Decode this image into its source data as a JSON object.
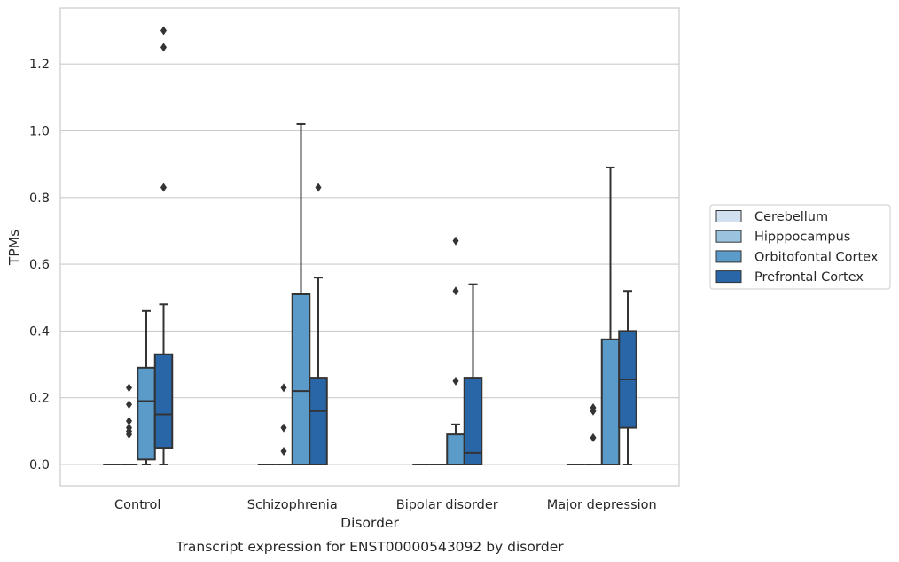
{
  "chart_data": {
    "type": "box",
    "caption": "Transcript expression for ENST00000543092 by disorder",
    "xlabel": "Disorder",
    "ylabel": "TPMs",
    "ylim": [
      -0.063,
      1.4
    ],
    "yticks": [
      0.0,
      0.2,
      0.4,
      0.6,
      0.8,
      1.0,
      1.2
    ],
    "ytick_labels": [
      "0.0",
      "0.2",
      "0.4",
      "0.6",
      "0.8",
      "1.0",
      "1.2"
    ],
    "grid": "horizontal",
    "legend_position": "right-outside",
    "categories": [
      "Control",
      "Schizophrenia",
      "Bipolar disorder",
      "Major depression"
    ],
    "series": [
      {
        "name": "Cerebellum",
        "color": "#d1e0f0",
        "boxes": [
          {
            "whislo": 0,
            "q1": 0,
            "med": 0,
            "q3": 0,
            "whishi": 0,
            "fliers": []
          },
          {
            "whislo": 0,
            "q1": 0,
            "med": 0,
            "q3": 0,
            "whishi": 0,
            "fliers": []
          },
          {
            "whislo": 0,
            "q1": 0,
            "med": 0,
            "q3": 0,
            "whishi": 0,
            "fliers": []
          },
          {
            "whislo": 0,
            "q1": 0,
            "med": 0,
            "q3": 0,
            "whishi": 0,
            "fliers": []
          }
        ]
      },
      {
        "name": "Hipppocampus",
        "color": "#9ac3df",
        "boxes": [
          {
            "whislo": 0,
            "q1": 0,
            "med": 0,
            "q3": 0,
            "whishi": 0,
            "fliers": [
              0.09,
              0.1,
              0.11,
              0.13,
              0.18,
              0.23
            ]
          },
          {
            "whislo": 0,
            "q1": 0,
            "med": 0,
            "q3": 0,
            "whishi": 0,
            "fliers": [
              0.04,
              0.11,
              0.23
            ]
          },
          {
            "whislo": 0,
            "q1": 0,
            "med": 0,
            "q3": 0,
            "whishi": 0,
            "fliers": []
          },
          {
            "whislo": 0,
            "q1": 0,
            "med": 0,
            "q3": 0,
            "whishi": 0,
            "fliers": [
              0.08,
              0.16,
              0.17
            ]
          }
        ]
      },
      {
        "name": "Orbitofontal Cortex",
        "color": "#5a9bc9",
        "boxes": [
          {
            "whislo": 0,
            "q1": 0.015,
            "med": 0.19,
            "q3": 0.29,
            "whishi": 0.46,
            "fliers": []
          },
          {
            "whislo": 0,
            "q1": 0,
            "med": 0.22,
            "q3": 0.51,
            "whishi": 1.02,
            "fliers": []
          },
          {
            "whislo": 0,
            "q1": 0,
            "med": 0,
            "q3": 0.09,
            "whishi": 0.12,
            "fliers": [
              0.25,
              0.52,
              0.67
            ]
          },
          {
            "whislo": 0,
            "q1": 0,
            "med": 0,
            "q3": 0.375,
            "whishi": 0.89,
            "fliers": []
          }
        ]
      },
      {
        "name": "Prefrontal Cortex",
        "color": "#2866a8",
        "boxes": [
          {
            "whislo": 0,
            "q1": 0.05,
            "med": 0.15,
            "q3": 0.33,
            "whishi": 0.48,
            "fliers": [
              0.83,
              1.25,
              1.3
            ]
          },
          {
            "whislo": 0,
            "q1": 0,
            "med": 0.16,
            "q3": 0.26,
            "whishi": 0.56,
            "fliers": [
              0.83
            ]
          },
          {
            "whislo": 0,
            "q1": 0,
            "med": 0.035,
            "q3": 0.26,
            "whishi": 0.54,
            "fliers": []
          },
          {
            "whislo": 0,
            "q1": 0.11,
            "med": 0.255,
            "q3": 0.4,
            "whishi": 0.52,
            "fliers": []
          }
        ]
      }
    ]
  },
  "colors": {
    "grid": "#cccccc",
    "axes_edge": "#cccccc",
    "box_edge": "#333333",
    "text": "#262626",
    "background": "#ffffff"
  }
}
